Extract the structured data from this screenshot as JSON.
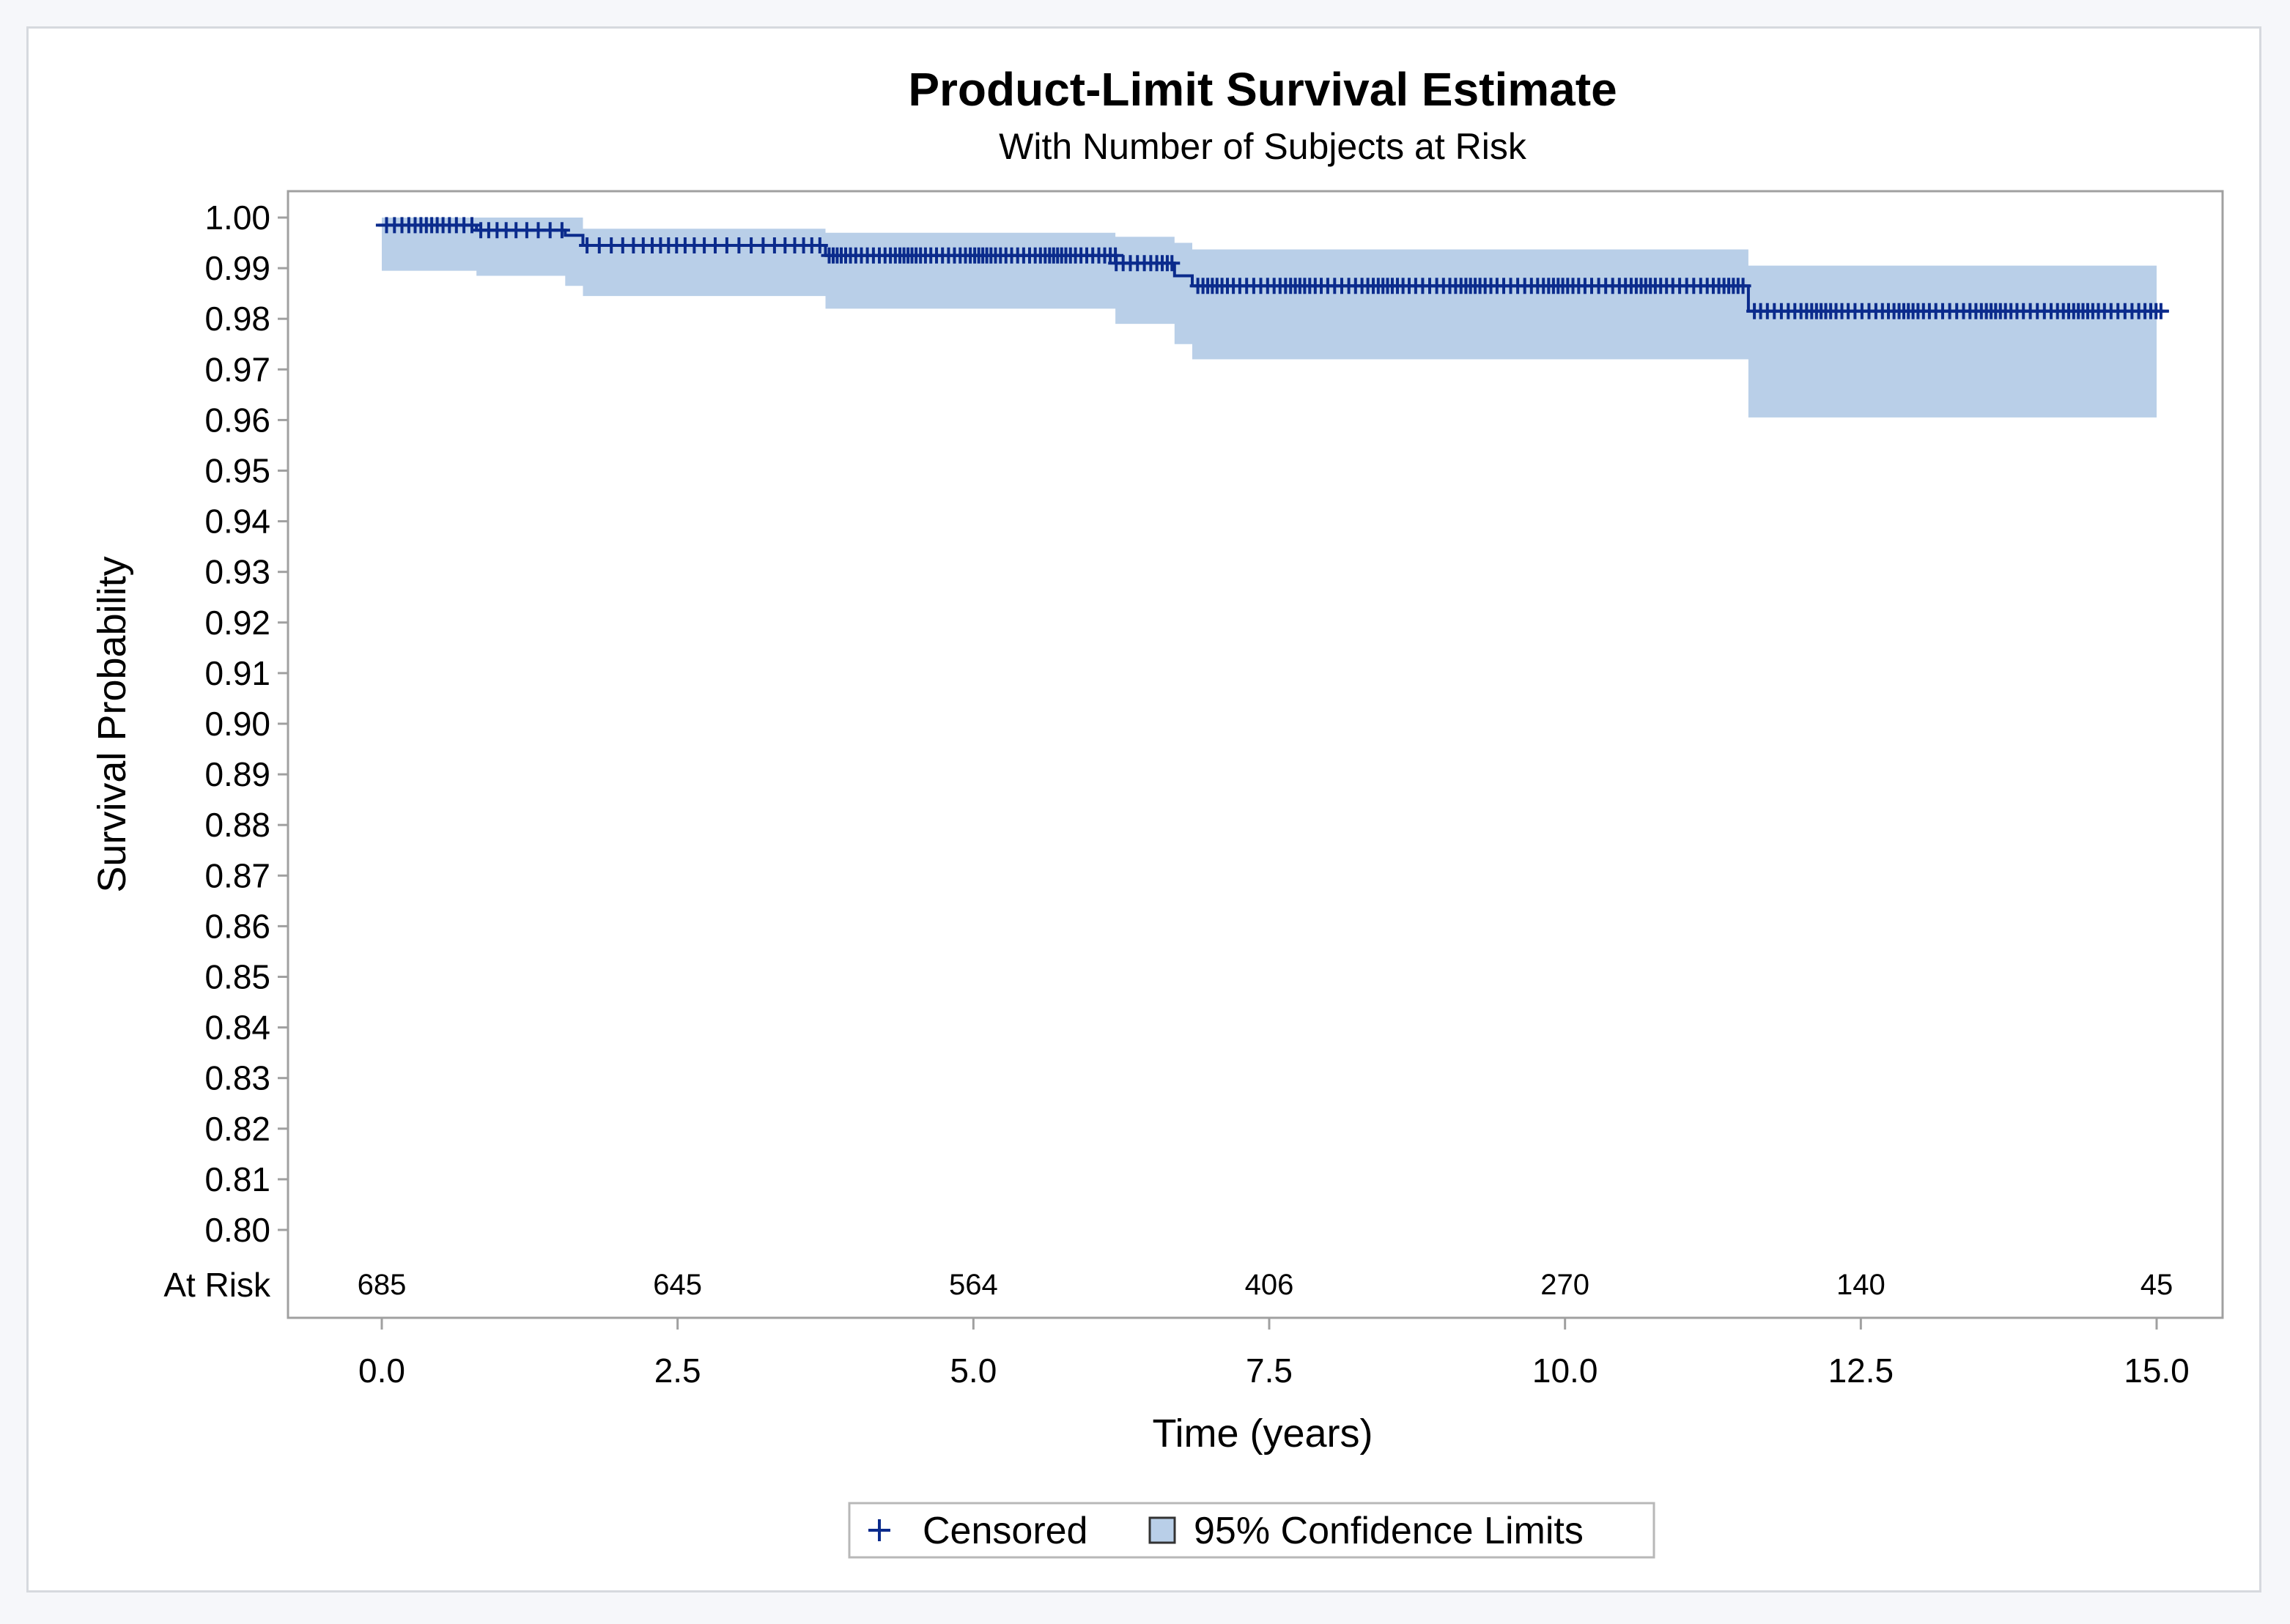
{
  "colors": {
    "line": "#0b2b8c",
    "band": "#b9cfe8",
    "frame": "#a0a0a0",
    "background": "#ffffff"
  },
  "chart_data": {
    "type": "line",
    "title": "Product-Limit Survival Estimate",
    "subtitle": "With Number of Subjects at Risk",
    "xlabel": "Time (years)",
    "ylabel": "Survival Probability",
    "xlim": [
      0,
      15
    ],
    "ylim": [
      0.8,
      1.0
    ],
    "x_ticks": [
      "0.0",
      "2.5",
      "5.0",
      "7.5",
      "10.0",
      "12.5",
      "15.0"
    ],
    "x_tick_values": [
      0,
      2.5,
      5,
      7.5,
      10,
      12.5,
      15
    ],
    "y_ticks": [
      "1.00",
      "0.99",
      "0.98",
      "0.97",
      "0.96",
      "0.95",
      "0.94",
      "0.93",
      "0.92",
      "0.91",
      "0.90",
      "0.89",
      "0.88",
      "0.87",
      "0.86",
      "0.85",
      "0.84",
      "0.83",
      "0.82",
      "0.81",
      "0.80"
    ],
    "y_tick_values": [
      1.0,
      0.99,
      0.98,
      0.97,
      0.96,
      0.95,
      0.94,
      0.93,
      0.92,
      0.91,
      0.9,
      0.89,
      0.88,
      0.87,
      0.86,
      0.85,
      0.84,
      0.83,
      0.82,
      0.81,
      0.8
    ],
    "survival_steps": [
      {
        "x": -0.05,
        "y": 0.9985
      },
      {
        "x": 0.8,
        "y": 0.9975
      },
      {
        "x": 1.55,
        "y": 0.9965
      },
      {
        "x": 1.7,
        "y": 0.9945
      },
      {
        "x": 3.75,
        "y": 0.9925
      },
      {
        "x": 6.2,
        "y": 0.991
      },
      {
        "x": 6.7,
        "y": 0.9885
      },
      {
        "x": 6.85,
        "y": 0.9865
      },
      {
        "x": 11.55,
        "y": 0.9815
      },
      {
        "x": 15.1,
        "y": 0.9815
      }
    ],
    "confidence_limits": [
      {
        "x": 0.0,
        "upper": 1.0,
        "lower": 0.9895
      },
      {
        "x": 0.8,
        "upper": 1.0,
        "lower": 0.9885
      },
      {
        "x": 1.55,
        "upper": 1.0,
        "lower": 0.9865
      },
      {
        "x": 1.7,
        "upper": 0.9978,
        "lower": 0.9845
      },
      {
        "x": 3.75,
        "upper": 0.997,
        "lower": 0.982
      },
      {
        "x": 6.2,
        "upper": 0.9962,
        "lower": 0.979
      },
      {
        "x": 6.7,
        "upper": 0.995,
        "lower": 0.975
      },
      {
        "x": 6.85,
        "upper": 0.9937,
        "lower": 0.972
      },
      {
        "x": 11.55,
        "upper": 0.9905,
        "lower": 0.9605
      },
      {
        "x": 15.0,
        "upper": 0.9905,
        "lower": 0.9605
      }
    ],
    "censored_groups": [
      {
        "from": 0.0,
        "to": 0.8,
        "y": 0.9985,
        "n": 14
      },
      {
        "from": 0.8,
        "to": 1.55,
        "y": 0.9975,
        "n": 9
      },
      {
        "from": 1.7,
        "to": 3.75,
        "y": 0.9945,
        "n": 24
      },
      {
        "from": 3.75,
        "to": 6.2,
        "y": 0.9925,
        "n": 58
      },
      {
        "from": 6.2,
        "to": 6.7,
        "y": 0.991,
        "n": 10
      },
      {
        "from": 6.85,
        "to": 11.55,
        "y": 0.9865,
        "n": 95
      },
      {
        "from": 11.6,
        "to": 15.05,
        "y": 0.9815,
        "n": 70
      }
    ],
    "at_risk_label": "At Risk",
    "at_risk": [
      {
        "x": 0,
        "value": "685"
      },
      {
        "x": 2.5,
        "value": "645"
      },
      {
        "x": 5,
        "value": "564"
      },
      {
        "x": 7.5,
        "value": "406"
      },
      {
        "x": 10,
        "value": "270"
      },
      {
        "x": 12.5,
        "value": "140"
      },
      {
        "x": 15,
        "value": "45"
      }
    ],
    "legend": {
      "position": "bottom-center",
      "items": [
        {
          "marker": "plus",
          "label": "Censored"
        },
        {
          "marker": "square",
          "label": "95% Confidence Limits"
        }
      ]
    },
    "grid": false
  }
}
